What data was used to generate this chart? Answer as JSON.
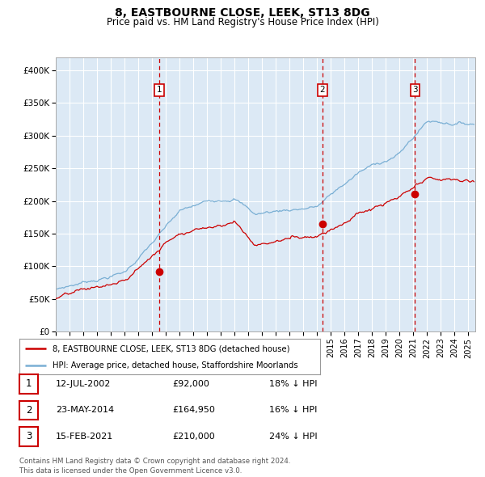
{
  "title": "8, EASTBOURNE CLOSE, LEEK, ST13 8DG",
  "subtitle": "Price paid vs. HM Land Registry's House Price Index (HPI)",
  "ylabel_ticks": [
    "£0",
    "£50K",
    "£100K",
    "£150K",
    "£200K",
    "£250K",
    "£300K",
    "£350K",
    "£400K"
  ],
  "ytick_values": [
    0,
    50000,
    100000,
    150000,
    200000,
    250000,
    300000,
    350000,
    400000
  ],
  "ylim": [
    0,
    420000
  ],
  "xlim_start": 1995.0,
  "xlim_end": 2025.5,
  "plot_bg_color": "#dce9f5",
  "grid_color": "#ffffff",
  "hpi_line_color": "#7aafd4",
  "price_line_color": "#cc0000",
  "vline_color": "#cc0000",
  "marker_color": "#cc0000",
  "transactions": [
    {
      "label": "1",
      "date": 2002.54,
      "price": 92000
    },
    {
      "label": "2",
      "date": 2014.39,
      "price": 164950
    },
    {
      "label": "3",
      "date": 2021.12,
      "price": 210000
    }
  ],
  "legend_entries": [
    "8, EASTBOURNE CLOSE, LEEK, ST13 8DG (detached house)",
    "HPI: Average price, detached house, Staffordshire Moorlands"
  ],
  "table_rows": [
    {
      "num": "1",
      "date": "12-JUL-2002",
      "price": "£92,000",
      "hpi": "18% ↓ HPI"
    },
    {
      "num": "2",
      "date": "23-MAY-2014",
      "price": "£164,950",
      "hpi": "16% ↓ HPI"
    },
    {
      "num": "3",
      "date": "15-FEB-2021",
      "price": "£210,000",
      "hpi": "24% ↓ HPI"
    }
  ],
  "footnote": "Contains HM Land Registry data © Crown copyright and database right 2024.\nThis data is licensed under the Open Government Licence v3.0."
}
